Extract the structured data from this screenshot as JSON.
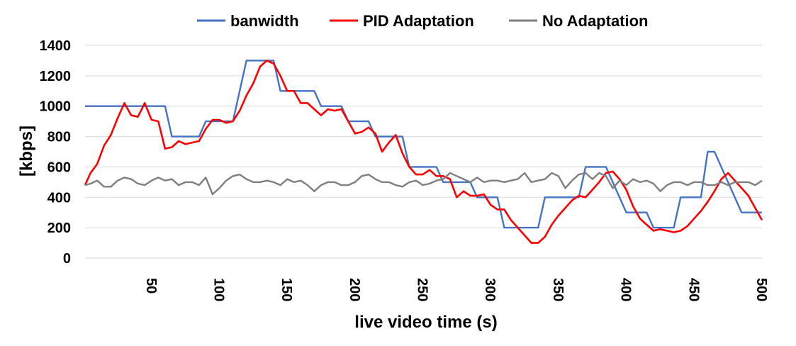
{
  "chart_data": {
    "type": "line",
    "title": "",
    "xlabel": "live video time (s)",
    "ylabel": "[kbps]",
    "xlim": [
      1,
      500
    ],
    "ylim": [
      0,
      1400
    ],
    "x_ticks": [
      50,
      100,
      150,
      200,
      250,
      300,
      350,
      400,
      450,
      500
    ],
    "y_ticks": [
      0,
      200,
      400,
      600,
      800,
      1000,
      1200,
      1400
    ],
    "grid": "horizontal",
    "legend_position": "top",
    "series": [
      {
        "name": "banwidth",
        "color": "#4472C4",
        "points": [
          [
            1,
            1000
          ],
          [
            60,
            1000
          ],
          [
            65,
            800
          ],
          [
            85,
            800
          ],
          [
            90,
            900
          ],
          [
            110,
            900
          ],
          [
            120,
            1300
          ],
          [
            140,
            1300
          ],
          [
            145,
            1100
          ],
          [
            170,
            1100
          ],
          [
            175,
            1000
          ],
          [
            190,
            1000
          ],
          [
            195,
            900
          ],
          [
            210,
            900
          ],
          [
            215,
            800
          ],
          [
            235,
            800
          ],
          [
            240,
            600
          ],
          [
            260,
            600
          ],
          [
            265,
            500
          ],
          [
            285,
            500
          ],
          [
            290,
            400
          ],
          [
            305,
            400
          ],
          [
            310,
            200
          ],
          [
            325,
            200
          ],
          [
            335,
            200
          ],
          [
            340,
            400
          ],
          [
            365,
            400
          ],
          [
            370,
            600
          ],
          [
            385,
            600
          ],
          [
            390,
            500
          ],
          [
            400,
            300
          ],
          [
            415,
            300
          ],
          [
            420,
            200
          ],
          [
            435,
            200
          ],
          [
            440,
            400
          ],
          [
            455,
            400
          ],
          [
            460,
            700
          ],
          [
            465,
            700
          ],
          [
            480,
            400
          ],
          [
            485,
            300
          ],
          [
            500,
            300
          ]
        ]
      },
      {
        "name": "PID Adaptation",
        "color": "#FF0000",
        "points": [
          [
            1,
            480
          ],
          [
            5,
            560
          ],
          [
            10,
            620
          ],
          [
            15,
            740
          ],
          [
            20,
            810
          ],
          [
            25,
            920
          ],
          [
            30,
            1020
          ],
          [
            35,
            940
          ],
          [
            40,
            930
          ],
          [
            45,
            1020
          ],
          [
            50,
            910
          ],
          [
            55,
            900
          ],
          [
            60,
            720
          ],
          [
            65,
            730
          ],
          [
            70,
            770
          ],
          [
            75,
            750
          ],
          [
            80,
            760
          ],
          [
            85,
            770
          ],
          [
            90,
            850
          ],
          [
            95,
            910
          ],
          [
            100,
            910
          ],
          [
            105,
            890
          ],
          [
            110,
            900
          ],
          [
            115,
            970
          ],
          [
            120,
            1070
          ],
          [
            125,
            1150
          ],
          [
            130,
            1260
          ],
          [
            135,
            1300
          ],
          [
            140,
            1280
          ],
          [
            145,
            1200
          ],
          [
            150,
            1100
          ],
          [
            155,
            1100
          ],
          [
            160,
            1020
          ],
          [
            165,
            1020
          ],
          [
            170,
            980
          ],
          [
            175,
            940
          ],
          [
            180,
            980
          ],
          [
            185,
            970
          ],
          [
            190,
            980
          ],
          [
            195,
            900
          ],
          [
            200,
            820
          ],
          [
            205,
            830
          ],
          [
            210,
            860
          ],
          [
            215,
            820
          ],
          [
            220,
            700
          ],
          [
            225,
            760
          ],
          [
            230,
            810
          ],
          [
            235,
            690
          ],
          [
            240,
            600
          ],
          [
            245,
            550
          ],
          [
            250,
            550
          ],
          [
            255,
            580
          ],
          [
            260,
            540
          ],
          [
            265,
            540
          ],
          [
            270,
            520
          ],
          [
            275,
            400
          ],
          [
            280,
            440
          ],
          [
            285,
            410
          ],
          [
            290,
            410
          ],
          [
            295,
            420
          ],
          [
            300,
            350
          ],
          [
            305,
            320
          ],
          [
            310,
            320
          ],
          [
            315,
            250
          ],
          [
            320,
            200
          ],
          [
            325,
            150
          ],
          [
            330,
            100
          ],
          [
            335,
            100
          ],
          [
            340,
            140
          ],
          [
            345,
            220
          ],
          [
            350,
            280
          ],
          [
            355,
            330
          ],
          [
            360,
            380
          ],
          [
            365,
            410
          ],
          [
            370,
            400
          ],
          [
            375,
            450
          ],
          [
            380,
            500
          ],
          [
            385,
            560
          ],
          [
            390,
            570
          ],
          [
            395,
            520
          ],
          [
            400,
            450
          ],
          [
            405,
            340
          ],
          [
            410,
            260
          ],
          [
            415,
            220
          ],
          [
            420,
            180
          ],
          [
            425,
            190
          ],
          [
            430,
            180
          ],
          [
            435,
            170
          ],
          [
            440,
            180
          ],
          [
            445,
            210
          ],
          [
            450,
            260
          ],
          [
            455,
            310
          ],
          [
            460,
            370
          ],
          [
            465,
            440
          ],
          [
            470,
            520
          ],
          [
            475,
            560
          ],
          [
            480,
            510
          ],
          [
            485,
            460
          ],
          [
            490,
            410
          ],
          [
            495,
            330
          ],
          [
            500,
            250
          ]
        ]
      },
      {
        "name": "No Adaptation",
        "color": "#7F7F7F",
        "points": [
          [
            1,
            480
          ],
          [
            5,
            490
          ],
          [
            10,
            510
          ],
          [
            15,
            470
          ],
          [
            20,
            470
          ],
          [
            25,
            510
          ],
          [
            30,
            530
          ],
          [
            35,
            520
          ],
          [
            40,
            490
          ],
          [
            45,
            480
          ],
          [
            50,
            510
          ],
          [
            55,
            530
          ],
          [
            60,
            510
          ],
          [
            65,
            520
          ],
          [
            70,
            480
          ],
          [
            75,
            500
          ],
          [
            80,
            500
          ],
          [
            85,
            480
          ],
          [
            90,
            530
          ],
          [
            95,
            420
          ],
          [
            100,
            460
          ],
          [
            105,
            510
          ],
          [
            110,
            540
          ],
          [
            115,
            550
          ],
          [
            120,
            520
          ],
          [
            125,
            500
          ],
          [
            130,
            500
          ],
          [
            135,
            510
          ],
          [
            140,
            500
          ],
          [
            145,
            480
          ],
          [
            150,
            520
          ],
          [
            155,
            500
          ],
          [
            160,
            510
          ],
          [
            165,
            480
          ],
          [
            170,
            440
          ],
          [
            175,
            480
          ],
          [
            180,
            500
          ],
          [
            185,
            500
          ],
          [
            190,
            480
          ],
          [
            195,
            480
          ],
          [
            200,
            500
          ],
          [
            205,
            540
          ],
          [
            210,
            550
          ],
          [
            215,
            520
          ],
          [
            220,
            500
          ],
          [
            225,
            500
          ],
          [
            230,
            480
          ],
          [
            235,
            470
          ],
          [
            240,
            500
          ],
          [
            245,
            510
          ],
          [
            250,
            480
          ],
          [
            255,
            490
          ],
          [
            260,
            510
          ],
          [
            265,
            520
          ],
          [
            270,
            560
          ],
          [
            275,
            540
          ],
          [
            280,
            520
          ],
          [
            285,
            500
          ],
          [
            290,
            530
          ],
          [
            295,
            500
          ],
          [
            300,
            510
          ],
          [
            305,
            510
          ],
          [
            310,
            500
          ],
          [
            315,
            510
          ],
          [
            320,
            520
          ],
          [
            325,
            560
          ],
          [
            330,
            500
          ],
          [
            335,
            510
          ],
          [
            340,
            520
          ],
          [
            345,
            560
          ],
          [
            350,
            540
          ],
          [
            355,
            460
          ],
          [
            360,
            510
          ],
          [
            365,
            550
          ],
          [
            370,
            560
          ],
          [
            375,
            520
          ],
          [
            380,
            560
          ],
          [
            385,
            540
          ],
          [
            390,
            460
          ],
          [
            395,
            510
          ],
          [
            400,
            480
          ],
          [
            405,
            520
          ],
          [
            410,
            500
          ],
          [
            415,
            510
          ],
          [
            420,
            490
          ],
          [
            425,
            440
          ],
          [
            430,
            480
          ],
          [
            435,
            500
          ],
          [
            440,
            500
          ],
          [
            445,
            480
          ],
          [
            450,
            500
          ],
          [
            455,
            500
          ],
          [
            460,
            480
          ],
          [
            465,
            480
          ],
          [
            470,
            500
          ],
          [
            475,
            480
          ],
          [
            480,
            500
          ],
          [
            485,
            500
          ],
          [
            490,
            500
          ],
          [
            495,
            480
          ],
          [
            500,
            510
          ]
        ]
      }
    ]
  }
}
